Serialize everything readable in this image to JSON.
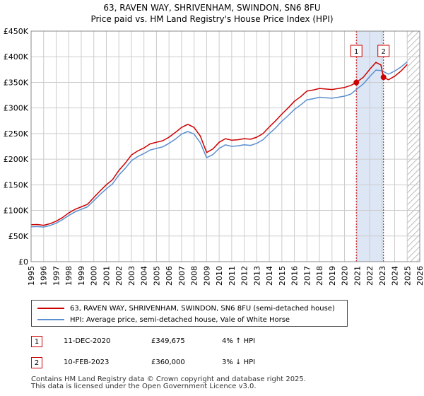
{
  "title_line1": "63, RAVEN WAY, SHRIVENHAM, SWINDON, SN6 8FU",
  "title_line2": "Price paid vs. HM Land Registry's House Price Index (HPI)",
  "colors": {
    "property": "#cc0000",
    "hpi": "#5b8fd0",
    "shade": "#dde6f5",
    "grid": "#cccccc",
    "marker_border": "#cc0000"
  },
  "legend": {
    "property_label": "63, RAVEN WAY, SHRIVENHAM, SWINDON, SN6 8FU (semi-detached house)",
    "hpi_label": "HPI: Average price, semi-detached house, Vale of White Horse"
  },
  "annotations": [
    {
      "num": "1",
      "date": "11-DEC-2020",
      "price": "£349,675",
      "hpi": "4% ↑ HPI"
    },
    {
      "num": "2",
      "date": "10-FEB-2023",
      "price": "£360,000",
      "hpi": "3% ↓ HPI"
    }
  ],
  "footer_line1": "Contains HM Land Registry data © Crown copyright and database right 2025.",
  "footer_line2": "This data is licensed under the Open Government Licence v3.0.",
  "chart_data": {
    "type": "line",
    "title": "Price paid vs. HM Land Registry's House Price Index (HPI)",
    "xlim": [
      1995,
      2026
    ],
    "ylim": [
      0,
      450000
    ],
    "x_ticks": [
      1995,
      1996,
      1997,
      1998,
      1999,
      2000,
      2001,
      2002,
      2003,
      2004,
      2005,
      2006,
      2007,
      2008,
      2009,
      2010,
      2011,
      2012,
      2013,
      2014,
      2015,
      2016,
      2017,
      2018,
      2019,
      2020,
      2021,
      2022,
      2023,
      2024,
      2025,
      2026
    ],
    "y_ticks": [
      0,
      50000,
      100000,
      150000,
      200000,
      250000,
      300000,
      350000,
      400000,
      450000
    ],
    "y_tick_labels": [
      "£0",
      "£50K",
      "£100K",
      "£150K",
      "£200K",
      "£250K",
      "£300K",
      "£350K",
      "£400K",
      "£450K"
    ],
    "shaded_range": [
      2020.94,
      2023.11
    ],
    "future_hatch_from": 2025.0,
    "sales": [
      {
        "label": "1",
        "x": 2020.94,
        "y": 349675
      },
      {
        "label": "2",
        "x": 2023.11,
        "y": 360000
      }
    ],
    "series": [
      {
        "name": "63, RAVEN WAY, SHRIVENHAM, SWINDON, SN6 8FU (semi-detached house)",
        "x": [
          1995.0,
          1995.5,
          1996.0,
          1996.5,
          1997.0,
          1997.5,
          1998.0,
          1998.5,
          1999.0,
          1999.5,
          2000.0,
          2000.5,
          2001.0,
          2001.5,
          2002.0,
          2002.5,
          2003.0,
          2003.5,
          2004.0,
          2004.5,
          2005.0,
          2005.5,
          2006.0,
          2006.5,
          2007.0,
          2007.5,
          2008.0,
          2008.5,
          2009.0,
          2009.5,
          2010.0,
          2010.5,
          2011.0,
          2011.5,
          2012.0,
          2012.5,
          2013.0,
          2013.5,
          2014.0,
          2014.5,
          2015.0,
          2015.5,
          2016.0,
          2016.5,
          2017.0,
          2017.5,
          2018.0,
          2018.5,
          2019.0,
          2019.5,
          2020.0,
          2020.5,
          2020.94,
          2021.5,
          2022.0,
          2022.5,
          2022.9,
          2023.11,
          2023.5,
          2024.0,
          2024.5,
          2025.0
        ],
        "values": [
          72000,
          72500,
          71000,
          74000,
          79000,
          86000,
          95000,
          102000,
          107000,
          112000,
          125000,
          138000,
          150000,
          160000,
          178000,
          192000,
          208000,
          216000,
          222000,
          230000,
          233000,
          236000,
          243000,
          252000,
          262000,
          268000,
          262000,
          245000,
          213000,
          220000,
          233000,
          240000,
          237000,
          238000,
          240000,
          239000,
          243000,
          250000,
          263000,
          275000,
          288000,
          300000,
          313000,
          322000,
          333000,
          335000,
          338000,
          337000,
          336000,
          338000,
          340000,
          344000,
          349675,
          360000,
          375000,
          389000,
          384000,
          360000,
          355000,
          362000,
          372000,
          385000
        ]
      },
      {
        "name": "HPI: Average price, semi-detached house, Vale of White Horse",
        "x": [
          1995.0,
          1995.5,
          1996.0,
          1996.5,
          1997.0,
          1997.5,
          1998.0,
          1998.5,
          1999.0,
          1999.5,
          2000.0,
          2000.5,
          2001.0,
          2001.5,
          2002.0,
          2002.5,
          2003.0,
          2003.5,
          2004.0,
          2004.5,
          2005.0,
          2005.5,
          2006.0,
          2006.5,
          2007.0,
          2007.5,
          2008.0,
          2008.5,
          2009.0,
          2009.5,
          2010.0,
          2010.5,
          2011.0,
          2011.5,
          2012.0,
          2012.5,
          2013.0,
          2013.5,
          2014.0,
          2014.5,
          2015.0,
          2015.5,
          2016.0,
          2016.5,
          2017.0,
          2017.5,
          2018.0,
          2018.5,
          2019.0,
          2019.5,
          2020.0,
          2020.5,
          2020.94,
          2021.5,
          2022.0,
          2022.5,
          2022.9,
          2023.11,
          2023.5,
          2024.0,
          2024.5,
          2025.0
        ],
        "values": [
          68000,
          68500,
          67500,
          70500,
          75000,
          82000,
          90000,
          97000,
          102000,
          107000,
          119000,
          131000,
          142000,
          152000,
          169000,
          182000,
          197000,
          205000,
          211000,
          218000,
          221000,
          224000,
          231000,
          239000,
          249000,
          254000,
          249000,
          232000,
          203000,
          209000,
          221000,
          228000,
          225000,
          226000,
          228000,
          227000,
          231000,
          238000,
          250000,
          261000,
          274000,
          285000,
          297000,
          306000,
          316000,
          318000,
          321000,
          320000,
          319000,
          321000,
          323000,
          327000,
          336000,
          347000,
          361000,
          374000,
          373000,
          371000,
          366000,
          372000,
          380000,
          390000
        ]
      }
    ]
  }
}
